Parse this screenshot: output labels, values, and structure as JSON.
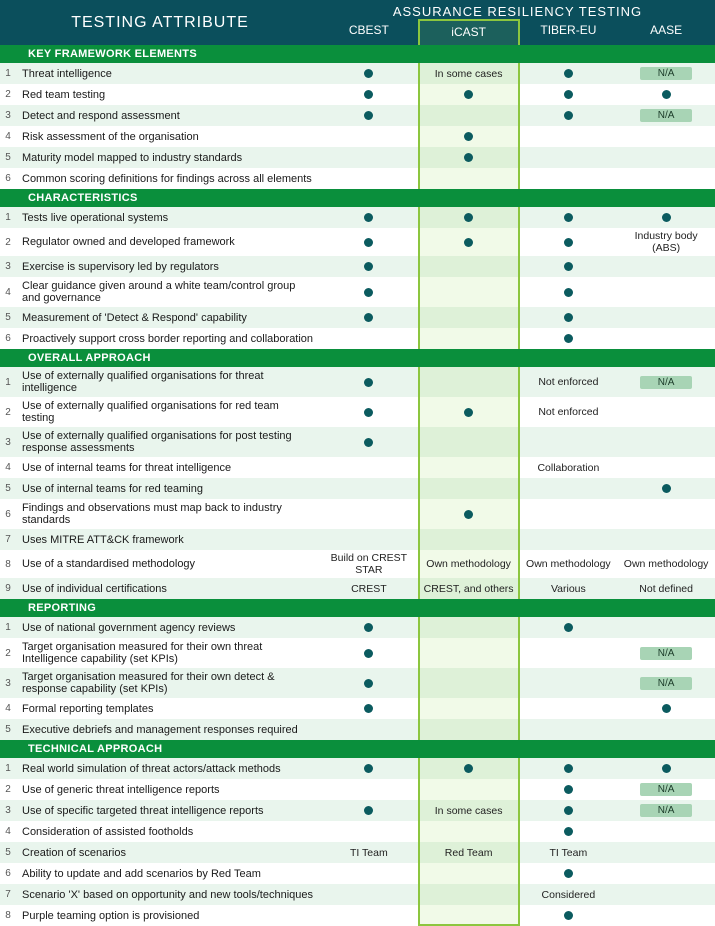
{
  "header": {
    "attribute": "TESTING ATTRIBUTE",
    "super": "ASSURANCE RESILIENCY TESTING",
    "cols": [
      "CBEST",
      "iCAST",
      "TIBER-EU",
      "AASE"
    ],
    "highlight_index": 1
  },
  "colors": {
    "header_bg": "#0b4f5c",
    "section_bg": "#0a8f3c",
    "even_row": "#e9f5ed",
    "dot": "#0b5b5f",
    "highlight_border": "#8cc63f",
    "na_pill_bg": "#a8d4b5"
  },
  "sections": [
    {
      "title": "KEY FRAMEWORK ELEMENTS",
      "rows": [
        {
          "n": "1",
          "label": "Threat intelligence",
          "cells": [
            {
              "t": "dot"
            },
            {
              "t": "text",
              "v": "In some cases"
            },
            {
              "t": "dot"
            },
            {
              "t": "na"
            }
          ]
        },
        {
          "n": "2",
          "label": "Red team testing",
          "cells": [
            {
              "t": "dot"
            },
            {
              "t": "dot"
            },
            {
              "t": "dot"
            },
            {
              "t": "dot"
            }
          ]
        },
        {
          "n": "3",
          "label": "Detect and respond assessment",
          "cells": [
            {
              "t": "dot"
            },
            {
              "t": ""
            },
            {
              "t": "dot"
            },
            {
              "t": "na"
            }
          ]
        },
        {
          "n": "4",
          "label": "Risk assessment of the organisation",
          "cells": [
            {
              "t": ""
            },
            {
              "t": "dot"
            },
            {
              "t": ""
            },
            {
              "t": ""
            }
          ]
        },
        {
          "n": "5",
          "label": "Maturity model mapped to industry standards",
          "cells": [
            {
              "t": ""
            },
            {
              "t": "dot"
            },
            {
              "t": ""
            },
            {
              "t": ""
            }
          ]
        },
        {
          "n": "6",
          "label": "Common scoring definitions for findings across all elements",
          "cells": [
            {
              "t": ""
            },
            {
              "t": ""
            },
            {
              "t": ""
            },
            {
              "t": ""
            }
          ]
        }
      ]
    },
    {
      "title": "CHARACTERISTICS",
      "rows": [
        {
          "n": "1",
          "label": "Tests live operational systems",
          "cells": [
            {
              "t": "dot"
            },
            {
              "t": "dot"
            },
            {
              "t": "dot"
            },
            {
              "t": "dot"
            }
          ]
        },
        {
          "n": "2",
          "label": "Regulator owned and developed framework",
          "cells": [
            {
              "t": "dot"
            },
            {
              "t": "dot"
            },
            {
              "t": "dot"
            },
            {
              "t": "text",
              "v": "Industry body (ABS)"
            }
          ]
        },
        {
          "n": "3",
          "label": "Exercise is supervisory led by regulators",
          "cells": [
            {
              "t": "dot"
            },
            {
              "t": ""
            },
            {
              "t": "dot"
            },
            {
              "t": ""
            }
          ]
        },
        {
          "n": "4",
          "label": "Clear guidance given around a white team/control group and governance",
          "cells": [
            {
              "t": "dot"
            },
            {
              "t": ""
            },
            {
              "t": "dot"
            },
            {
              "t": ""
            }
          ]
        },
        {
          "n": "5",
          "label": "Measurement of 'Detect & Respond' capability",
          "cells": [
            {
              "t": "dot"
            },
            {
              "t": ""
            },
            {
              "t": "dot"
            },
            {
              "t": ""
            }
          ]
        },
        {
          "n": "6",
          "label": "Proactively support cross border reporting and collaboration",
          "cells": [
            {
              "t": ""
            },
            {
              "t": ""
            },
            {
              "t": "dot"
            },
            {
              "t": ""
            }
          ]
        }
      ]
    },
    {
      "title": "OVERALL APPROACH",
      "rows": [
        {
          "n": "1",
          "label": "Use of externally qualified organisations for threat intelligence",
          "cells": [
            {
              "t": "dot"
            },
            {
              "t": ""
            },
            {
              "t": "text",
              "v": "Not enforced"
            },
            {
              "t": "na"
            }
          ]
        },
        {
          "n": "2",
          "label": "Use of externally qualified organisations for red team testing",
          "cells": [
            {
              "t": "dot"
            },
            {
              "t": "dot"
            },
            {
              "t": "text",
              "v": "Not enforced"
            },
            {
              "t": ""
            }
          ]
        },
        {
          "n": "3",
          "label": "Use of externally qualified organisations for post testing response assessments",
          "cells": [
            {
              "t": "dot"
            },
            {
              "t": ""
            },
            {
              "t": ""
            },
            {
              "t": ""
            }
          ]
        },
        {
          "n": "4",
          "label": "Use of internal teams for threat intelligence",
          "cells": [
            {
              "t": ""
            },
            {
              "t": ""
            },
            {
              "t": "text",
              "v": "Collaboration"
            },
            {
              "t": ""
            }
          ]
        },
        {
          "n": "5",
          "label": "Use of internal teams for red teaming",
          "cells": [
            {
              "t": ""
            },
            {
              "t": ""
            },
            {
              "t": ""
            },
            {
              "t": "dot"
            }
          ]
        },
        {
          "n": "6",
          "label": "Findings and observations must map back to industry standards",
          "cells": [
            {
              "t": ""
            },
            {
              "t": "dot"
            },
            {
              "t": ""
            },
            {
              "t": ""
            }
          ]
        },
        {
          "n": "7",
          "label": "Uses MITRE ATT&CK framework",
          "cells": [
            {
              "t": ""
            },
            {
              "t": ""
            },
            {
              "t": ""
            },
            {
              "t": ""
            }
          ]
        },
        {
          "n": "8",
          "label": "Use of a standardised methodology",
          "cells": [
            {
              "t": "text",
              "v": "Build on CREST STAR"
            },
            {
              "t": "text",
              "v": "Own methodology"
            },
            {
              "t": "text",
              "v": "Own methodology"
            },
            {
              "t": "text",
              "v": "Own methodology"
            }
          ]
        },
        {
          "n": "9",
          "label": "Use of individual certifications",
          "cells": [
            {
              "t": "text",
              "v": "CREST"
            },
            {
              "t": "text",
              "v": "CREST, and others"
            },
            {
              "t": "text",
              "v": "Various"
            },
            {
              "t": "text",
              "v": "Not defined"
            }
          ]
        }
      ]
    },
    {
      "title": "REPORTING",
      "rows": [
        {
          "n": "1",
          "label": "Use of national government agency reviews",
          "cells": [
            {
              "t": "dot"
            },
            {
              "t": ""
            },
            {
              "t": "dot"
            },
            {
              "t": ""
            }
          ]
        },
        {
          "n": "2",
          "label": "Target organisation measured for their own threat Intelligence capability (set KPIs)",
          "cells": [
            {
              "t": "dot"
            },
            {
              "t": ""
            },
            {
              "t": ""
            },
            {
              "t": "na"
            }
          ]
        },
        {
          "n": "3",
          "label": "Target organisation measured for their own detect & response capability (set KPIs)",
          "cells": [
            {
              "t": "dot"
            },
            {
              "t": ""
            },
            {
              "t": ""
            },
            {
              "t": "na"
            }
          ]
        },
        {
          "n": "4",
          "label": "Formal reporting templates",
          "cells": [
            {
              "t": "dot"
            },
            {
              "t": ""
            },
            {
              "t": ""
            },
            {
              "t": "dot"
            }
          ]
        },
        {
          "n": "5",
          "label": "Executive debriefs and management responses required",
          "cells": [
            {
              "t": ""
            },
            {
              "t": ""
            },
            {
              "t": ""
            },
            {
              "t": ""
            }
          ]
        }
      ]
    },
    {
      "title": "TECHNICAL APPROACH",
      "rows": [
        {
          "n": "1",
          "label": "Real world simulation of threat actors/attack methods",
          "cells": [
            {
              "t": "dot"
            },
            {
              "t": "dot"
            },
            {
              "t": "dot"
            },
            {
              "t": "dot"
            }
          ]
        },
        {
          "n": "2",
          "label": "Use of generic threat intelligence reports",
          "cells": [
            {
              "t": ""
            },
            {
              "t": ""
            },
            {
              "t": "dot"
            },
            {
              "t": "na"
            }
          ]
        },
        {
          "n": "3",
          "label": "Use of specific targeted threat intelligence reports",
          "cells": [
            {
              "t": "dot"
            },
            {
              "t": "text",
              "v": "In some cases"
            },
            {
              "t": "dot"
            },
            {
              "t": "na"
            }
          ]
        },
        {
          "n": "4",
          "label": "Consideration of assisted footholds",
          "cells": [
            {
              "t": ""
            },
            {
              "t": ""
            },
            {
              "t": "dot"
            },
            {
              "t": ""
            }
          ]
        },
        {
          "n": "5",
          "label": "Creation of scenarios",
          "cells": [
            {
              "t": "text",
              "v": "TI Team"
            },
            {
              "t": "text",
              "v": "Red Team"
            },
            {
              "t": "text",
              "v": "TI Team"
            },
            {
              "t": ""
            }
          ]
        },
        {
          "n": "6",
          "label": "Ability to update and add scenarios by Red Team",
          "cells": [
            {
              "t": ""
            },
            {
              "t": ""
            },
            {
              "t": "dot"
            },
            {
              "t": ""
            }
          ]
        },
        {
          "n": "7",
          "label": "Scenario 'X' based on opportunity and new tools/techniques",
          "cells": [
            {
              "t": ""
            },
            {
              "t": ""
            },
            {
              "t": "text",
              "v": "Considered"
            },
            {
              "t": ""
            }
          ]
        },
        {
          "n": "8",
          "label": "Purple teaming option is provisioned",
          "cells": [
            {
              "t": ""
            },
            {
              "t": ""
            },
            {
              "t": "dot"
            },
            {
              "t": ""
            }
          ]
        }
      ]
    }
  ],
  "labels": {
    "na": "N/A"
  }
}
